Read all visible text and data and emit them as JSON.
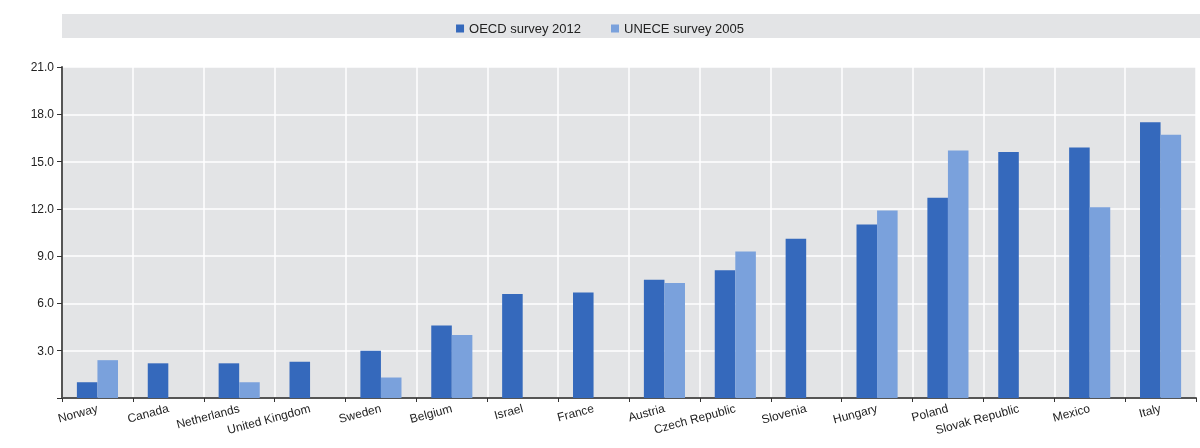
{
  "chart_data": {
    "type": "bar",
    "categories": [
      "Norway",
      "Canada",
      "Netherlands",
      "United Kingdom",
      "Sweden",
      "Belgium",
      "Israel",
      "France",
      "Austria",
      "Czech Republic",
      "Slovenia",
      "Hungary",
      "Poland",
      "Slovak Republic",
      "Mexico",
      "Italy"
    ],
    "series": [
      {
        "name": "OECD survey 2012",
        "color": "#3569bc",
        "values": [
          1.0,
          2.2,
          2.2,
          2.3,
          3.0,
          4.6,
          6.6,
          6.7,
          7.5,
          8.1,
          10.1,
          11.0,
          12.7,
          15.6,
          15.9,
          17.5
        ]
      },
      {
        "name": "UNECE survey 2005",
        "color": "#7aa1dc",
        "values": [
          2.4,
          null,
          1.0,
          null,
          1.3,
          4.0,
          null,
          null,
          7.3,
          9.3,
          null,
          11.9,
          15.7,
          null,
          12.1,
          16.7
        ]
      }
    ],
    "ylim": [
      0,
      21
    ],
    "yticks": [
      {
        "value": 0,
        "label": null
      },
      {
        "value": 3,
        "label": "3.0"
      },
      {
        "value": 6,
        "label": "6.0"
      },
      {
        "value": 9,
        "label": "9.0"
      },
      {
        "value": 12,
        "label": "12.0"
      },
      {
        "value": 15,
        "label": "15.0"
      },
      {
        "value": 18,
        "label": "18.0"
      },
      {
        "value": 21,
        "label": "21.0"
      }
    ],
    "grid": true,
    "legend": "top"
  }
}
